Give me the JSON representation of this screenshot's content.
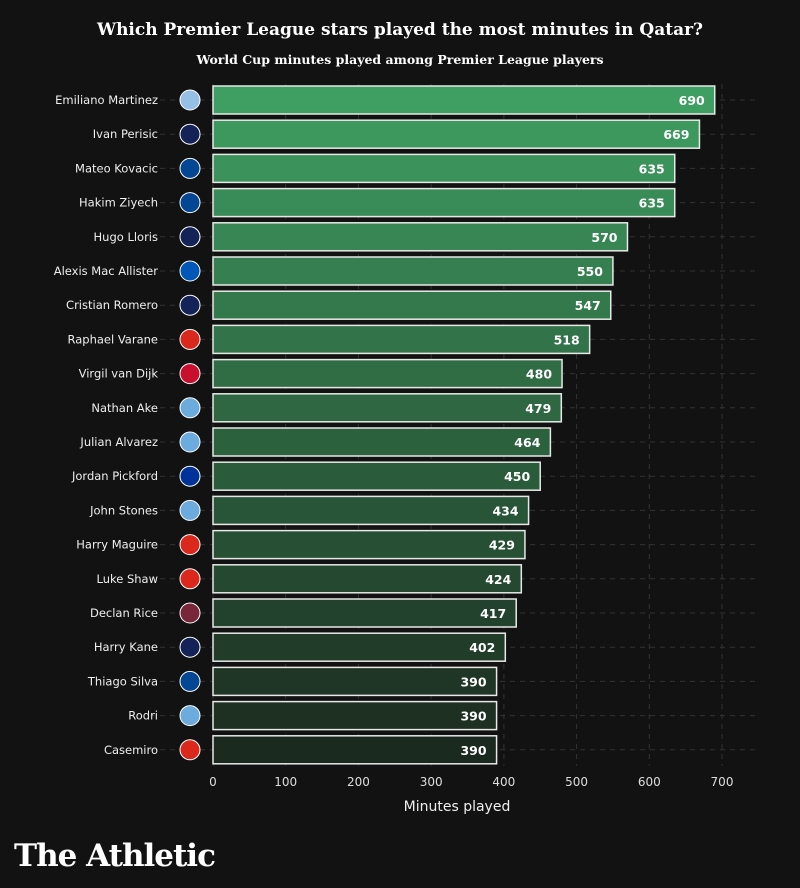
{
  "chart_data": {
    "type": "bar",
    "orientation": "horizontal",
    "title": "Which Premier League stars played the most minutes in Qatar?",
    "subtitle": "World Cup minutes played among Premier League players",
    "xlabel": "Minutes played",
    "xlim": [
      0,
      700
    ],
    "xticks": [
      0,
      100,
      200,
      300,
      400,
      500,
      600,
      700
    ],
    "grid": true,
    "categories": [
      "Emiliano Martinez",
      "Ivan Perisic",
      "Mateo Kovacic",
      "Hakim Ziyech",
      "Hugo Lloris",
      "Alexis Mac Allister",
      "Cristian Romero",
      "Raphael Varane",
      "Virgil van Dijk",
      "Nathan Ake",
      "Julian Alvarez",
      "Jordan Pickford",
      "John Stones",
      "Harry Maguire",
      "Luke Shaw",
      "Declan Rice",
      "Harry Kane",
      "Thiago Silva",
      "Rodri",
      "Casemiro"
    ],
    "values": [
      690,
      669,
      635,
      635,
      570,
      550,
      547,
      518,
      480,
      479,
      464,
      450,
      434,
      429,
      424,
      417,
      402,
      390,
      390,
      390
    ],
    "clubs": [
      "aston-villa",
      "tottenham",
      "chelsea",
      "chelsea",
      "tottenham",
      "brighton",
      "tottenham",
      "man-united",
      "liverpool",
      "man-city",
      "man-city",
      "everton",
      "man-city",
      "man-united",
      "man-united",
      "west-ham",
      "tottenham",
      "chelsea",
      "man-city",
      "man-united"
    ],
    "bar_color_top": "#3f9e61",
    "bar_color_bottom": "#1b2a1f",
    "club_colors": {
      "aston-villa": "#95bfe5",
      "tottenham": "#132257",
      "chelsea": "#034694",
      "brighton": "#0057b8",
      "man-united": "#da291c",
      "liverpool": "#c8102e",
      "man-city": "#6cabdd",
      "everton": "#003399",
      "west-ham": "#7a263a"
    }
  },
  "brand": "The Athletic"
}
